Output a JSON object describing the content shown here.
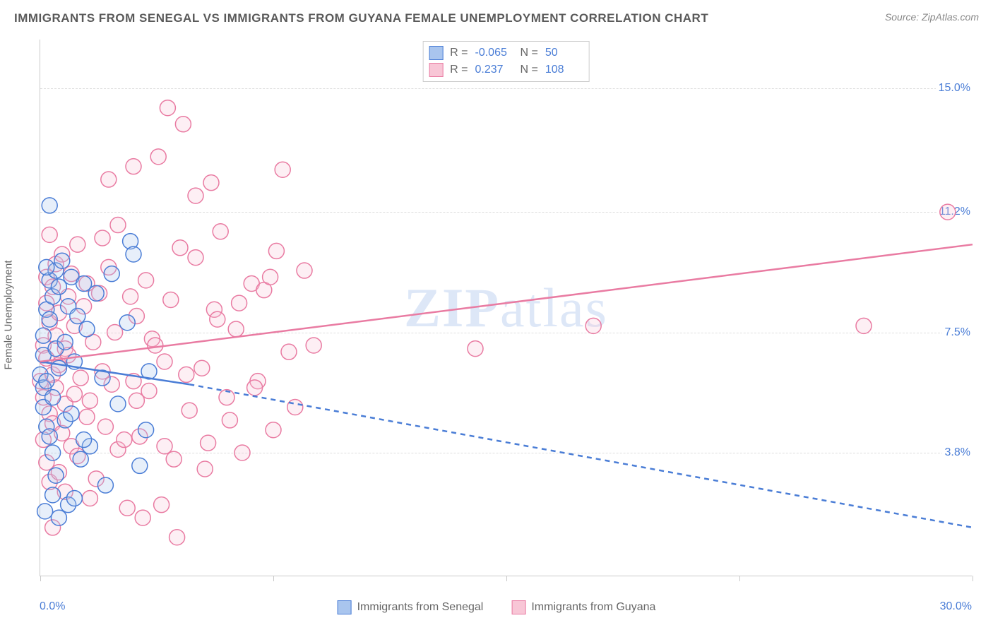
{
  "title": "IMMIGRANTS FROM SENEGAL VS IMMIGRANTS FROM GUYANA FEMALE UNEMPLOYMENT CORRELATION CHART",
  "source_label": "Source:",
  "source_name": "ZipAtlas.com",
  "watermark": "ZIPatlas",
  "y_axis_title": "Female Unemployment",
  "chart": {
    "type": "scatter-with-regression",
    "xlim": [
      0.0,
      30.0
    ],
    "ylim": [
      0.0,
      16.5
    ],
    "x_ticks": [
      0.0,
      7.5,
      15.0,
      22.5,
      30.0
    ],
    "x_label_min": "0.0%",
    "x_label_max": "30.0%",
    "y_gridlines": [
      3.8,
      7.5,
      11.2,
      15.0
    ],
    "y_labels": [
      "3.8%",
      "7.5%",
      "11.2%",
      "15.0%"
    ],
    "background_color": "#ffffff",
    "grid_color": "#dddddd",
    "axis_color": "#c9c9c9",
    "marker_radius": 11,
    "marker_stroke_width": 1.5,
    "marker_fill_opacity": 0.28,
    "line_width": 2.5
  },
  "series": [
    {
      "name": "Immigrants from Senegal",
      "key": "senegal",
      "color_stroke": "#4a7dd6",
      "color_fill": "#a9c5ee",
      "R": "-0.065",
      "N": "50",
      "regression": {
        "x1": 0.0,
        "y1": 6.6,
        "x2": 4.8,
        "y2": 5.9,
        "extrapolate_to": 30.0,
        "y_extrap": 1.5
      },
      "points": [
        [
          0.0,
          6.2
        ],
        [
          0.1,
          5.8
        ],
        [
          0.1,
          6.8
        ],
        [
          0.1,
          7.4
        ],
        [
          0.1,
          5.2
        ],
        [
          0.2,
          4.6
        ],
        [
          0.2,
          8.2
        ],
        [
          0.2,
          6.0
        ],
        [
          0.3,
          11.4
        ],
        [
          0.3,
          9.1
        ],
        [
          0.3,
          7.9
        ],
        [
          0.3,
          4.3
        ],
        [
          0.4,
          8.6
        ],
        [
          0.4,
          5.5
        ],
        [
          0.4,
          2.5
        ],
        [
          0.5,
          9.4
        ],
        [
          0.5,
          7.0
        ],
        [
          0.5,
          3.1
        ],
        [
          0.6,
          6.4
        ],
        [
          0.6,
          8.9
        ],
        [
          0.6,
          1.8
        ],
        [
          0.7,
          9.7
        ],
        [
          0.8,
          7.2
        ],
        [
          0.8,
          4.8
        ],
        [
          0.9,
          2.2
        ],
        [
          0.9,
          8.3
        ],
        [
          1.0,
          9.2
        ],
        [
          1.0,
          5.0
        ],
        [
          1.1,
          6.6
        ],
        [
          1.2,
          8.0
        ],
        [
          1.3,
          3.6
        ],
        [
          1.4,
          9.0
        ],
        [
          1.5,
          7.6
        ],
        [
          1.6,
          4.0
        ],
        [
          1.8,
          8.7
        ],
        [
          2.0,
          6.1
        ],
        [
          2.1,
          2.8
        ],
        [
          2.3,
          9.3
        ],
        [
          2.5,
          5.3
        ],
        [
          2.8,
          7.8
        ],
        [
          2.9,
          10.3
        ],
        [
          3.0,
          9.9
        ],
        [
          3.2,
          3.4
        ],
        [
          3.4,
          4.5
        ],
        [
          3.5,
          6.3
        ],
        [
          1.1,
          2.4
        ],
        [
          0.4,
          3.8
        ],
        [
          1.4,
          4.2
        ],
        [
          0.2,
          9.5
        ],
        [
          0.15,
          2.0
        ]
      ]
    },
    {
      "name": "Immigrants from Guyana",
      "key": "guyana",
      "color_stroke": "#e97ba2",
      "color_fill": "#f8c6d6",
      "R": "0.237",
      "N": "108",
      "regression": {
        "x1": 0.0,
        "y1": 6.6,
        "x2": 30.0,
        "y2": 10.2
      },
      "points": [
        [
          0.0,
          6.0
        ],
        [
          0.1,
          5.5
        ],
        [
          0.1,
          7.1
        ],
        [
          0.1,
          4.2
        ],
        [
          0.2,
          8.4
        ],
        [
          0.2,
          3.5
        ],
        [
          0.2,
          6.7
        ],
        [
          0.2,
          9.2
        ],
        [
          0.3,
          5.0
        ],
        [
          0.3,
          7.8
        ],
        [
          0.3,
          2.9
        ],
        [
          0.3,
          10.5
        ],
        [
          0.4,
          6.2
        ],
        [
          0.4,
          4.7
        ],
        [
          0.4,
          8.9
        ],
        [
          0.4,
          1.5
        ],
        [
          0.5,
          9.6
        ],
        [
          0.5,
          5.8
        ],
        [
          0.5,
          7.4
        ],
        [
          0.6,
          3.2
        ],
        [
          0.6,
          6.5
        ],
        [
          0.6,
          8.1
        ],
        [
          0.7,
          4.4
        ],
        [
          0.7,
          9.9
        ],
        [
          0.8,
          5.3
        ],
        [
          0.8,
          7.0
        ],
        [
          0.8,
          2.6
        ],
        [
          0.9,
          8.6
        ],
        [
          0.9,
          6.8
        ],
        [
          1.0,
          4.0
        ],
        [
          1.0,
          9.3
        ],
        [
          1.1,
          5.6
        ],
        [
          1.1,
          7.7
        ],
        [
          1.2,
          3.7
        ],
        [
          1.2,
          10.2
        ],
        [
          1.3,
          6.1
        ],
        [
          1.4,
          8.3
        ],
        [
          1.5,
          4.9
        ],
        [
          1.5,
          9.0
        ],
        [
          1.6,
          5.4
        ],
        [
          1.7,
          7.2
        ],
        [
          1.8,
          3.0
        ],
        [
          1.9,
          8.7
        ],
        [
          2.0,
          6.3
        ],
        [
          2.1,
          4.6
        ],
        [
          2.2,
          9.5
        ],
        [
          2.3,
          5.9
        ],
        [
          2.4,
          7.5
        ],
        [
          2.5,
          3.9
        ],
        [
          2.5,
          10.8
        ],
        [
          3.0,
          6.0
        ],
        [
          3.1,
          8.0
        ],
        [
          3.2,
          4.3
        ],
        [
          3.4,
          9.1
        ],
        [
          3.5,
          5.7
        ],
        [
          3.6,
          7.3
        ],
        [
          3.8,
          12.9
        ],
        [
          4.0,
          6.6
        ],
        [
          4.2,
          8.5
        ],
        [
          4.3,
          3.6
        ],
        [
          4.6,
          13.9
        ],
        [
          4.8,
          5.1
        ],
        [
          5.0,
          9.8
        ],
        [
          5.2,
          6.4
        ],
        [
          5.4,
          4.1
        ],
        [
          5.6,
          8.2
        ],
        [
          5.8,
          10.6
        ],
        [
          6.0,
          5.5
        ],
        [
          6.3,
          7.6
        ],
        [
          6.5,
          3.8
        ],
        [
          6.8,
          9.0
        ],
        [
          7.0,
          6.0
        ],
        [
          7.2,
          8.8
        ],
        [
          7.5,
          4.5
        ],
        [
          7.8,
          12.5
        ],
        [
          8.0,
          6.9
        ],
        [
          8.2,
          5.2
        ],
        [
          8.5,
          9.4
        ],
        [
          8.8,
          7.1
        ],
        [
          7.6,
          10.0
        ],
        [
          4.4,
          1.2
        ],
        [
          3.9,
          2.2
        ],
        [
          4.1,
          14.4
        ],
        [
          5.3,
          3.3
        ],
        [
          6.1,
          4.8
        ],
        [
          2.8,
          2.1
        ],
        [
          3.3,
          1.8
        ],
        [
          1.6,
          2.4
        ],
        [
          2.0,
          10.4
        ],
        [
          4.5,
          10.1
        ],
        [
          5.0,
          11.7
        ],
        [
          3.0,
          12.6
        ],
        [
          5.7,
          7.9
        ],
        [
          6.4,
          8.4
        ],
        [
          4.0,
          4.0
        ],
        [
          4.7,
          6.2
        ],
        [
          3.7,
          7.1
        ],
        [
          2.9,
          8.6
        ],
        [
          2.2,
          12.2
        ],
        [
          5.5,
          12.1
        ],
        [
          6.9,
          5.8
        ],
        [
          7.4,
          9.2
        ],
        [
          3.1,
          5.4
        ],
        [
          14.0,
          7.0
        ],
        [
          17.8,
          7.7
        ],
        [
          26.5,
          7.7
        ],
        [
          29.2,
          11.2
        ],
        [
          2.7,
          4.2
        ]
      ]
    }
  ],
  "legend_top": {
    "r_label": "R =",
    "n_label": "N ="
  },
  "legend_bottom": [
    {
      "swatch": "senegal",
      "label": "Immigrants from Senegal"
    },
    {
      "swatch": "guyana",
      "label": "Immigrants from Guyana"
    }
  ]
}
